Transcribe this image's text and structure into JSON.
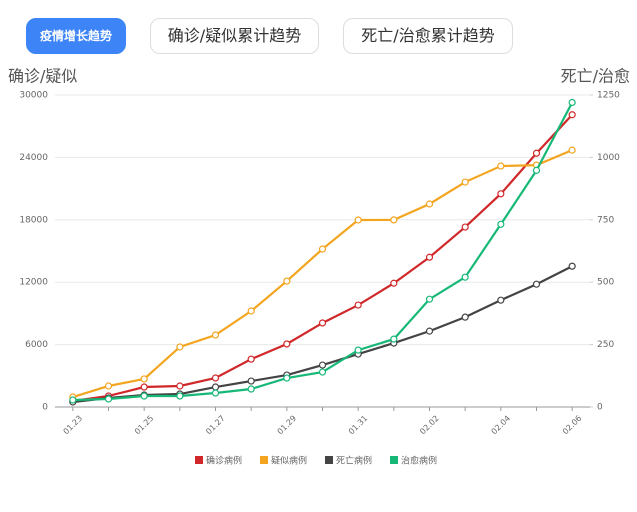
{
  "tabs": [
    "疫情增长趋势",
    "确诊/疑似累计趋势",
    "死亡/治愈累计趋势"
  ],
  "chart_data": {
    "type": "line",
    "y_label": "确诊/疑似",
    "y2_label": "死亡/治愈",
    "categories": [
      "01.23",
      null,
      "01.25",
      null,
      "01.27",
      null,
      "01.29",
      null,
      "01.31",
      null,
      "02.02",
      null,
      "02.04",
      null,
      "02.06"
    ],
    "ylim": [
      0,
      30000
    ],
    "yticks": [
      0,
      6000,
      12000,
      18000,
      24000,
      30000
    ],
    "y2lim": [
      0,
      1250
    ],
    "y2ticks": [
      0,
      250,
      500,
      750,
      1000,
      1250
    ],
    "grid": true,
    "legend": "bottom",
    "series": [
      {
        "name": "确诊病例",
        "color": "#d0282a",
        "values": [
          580,
          1060,
          1920,
          2020,
          2790,
          4600,
          6060,
          8080,
          9800,
          11900,
          14400,
          17300,
          20500,
          24400,
          28100
        ]
      },
      {
        "name": "疑似病例",
        "color": "#f3a51f",
        "values": [
          960,
          2020,
          2700,
          5770,
          6920,
          9230,
          12110,
          15190,
          17980,
          17990,
          19520,
          21630,
          23170,
          23260,
          24700
        ]
      },
      {
        "name": "死亡病例",
        "color": "#444444",
        "axis": "y2",
        "values": [
          20,
          36,
          48,
          52,
          80,
          104,
          128,
          168,
          212,
          256,
          304,
          360,
          428,
          492,
          564
        ]
      },
      {
        "name": "治愈病例",
        "color": "#17b877",
        "axis": "y2",
        "values": [
          28,
          32,
          44,
          44,
          56,
          72,
          116,
          140,
          228,
          272,
          432,
          520,
          732,
          948,
          1220
        ]
      }
    ]
  }
}
